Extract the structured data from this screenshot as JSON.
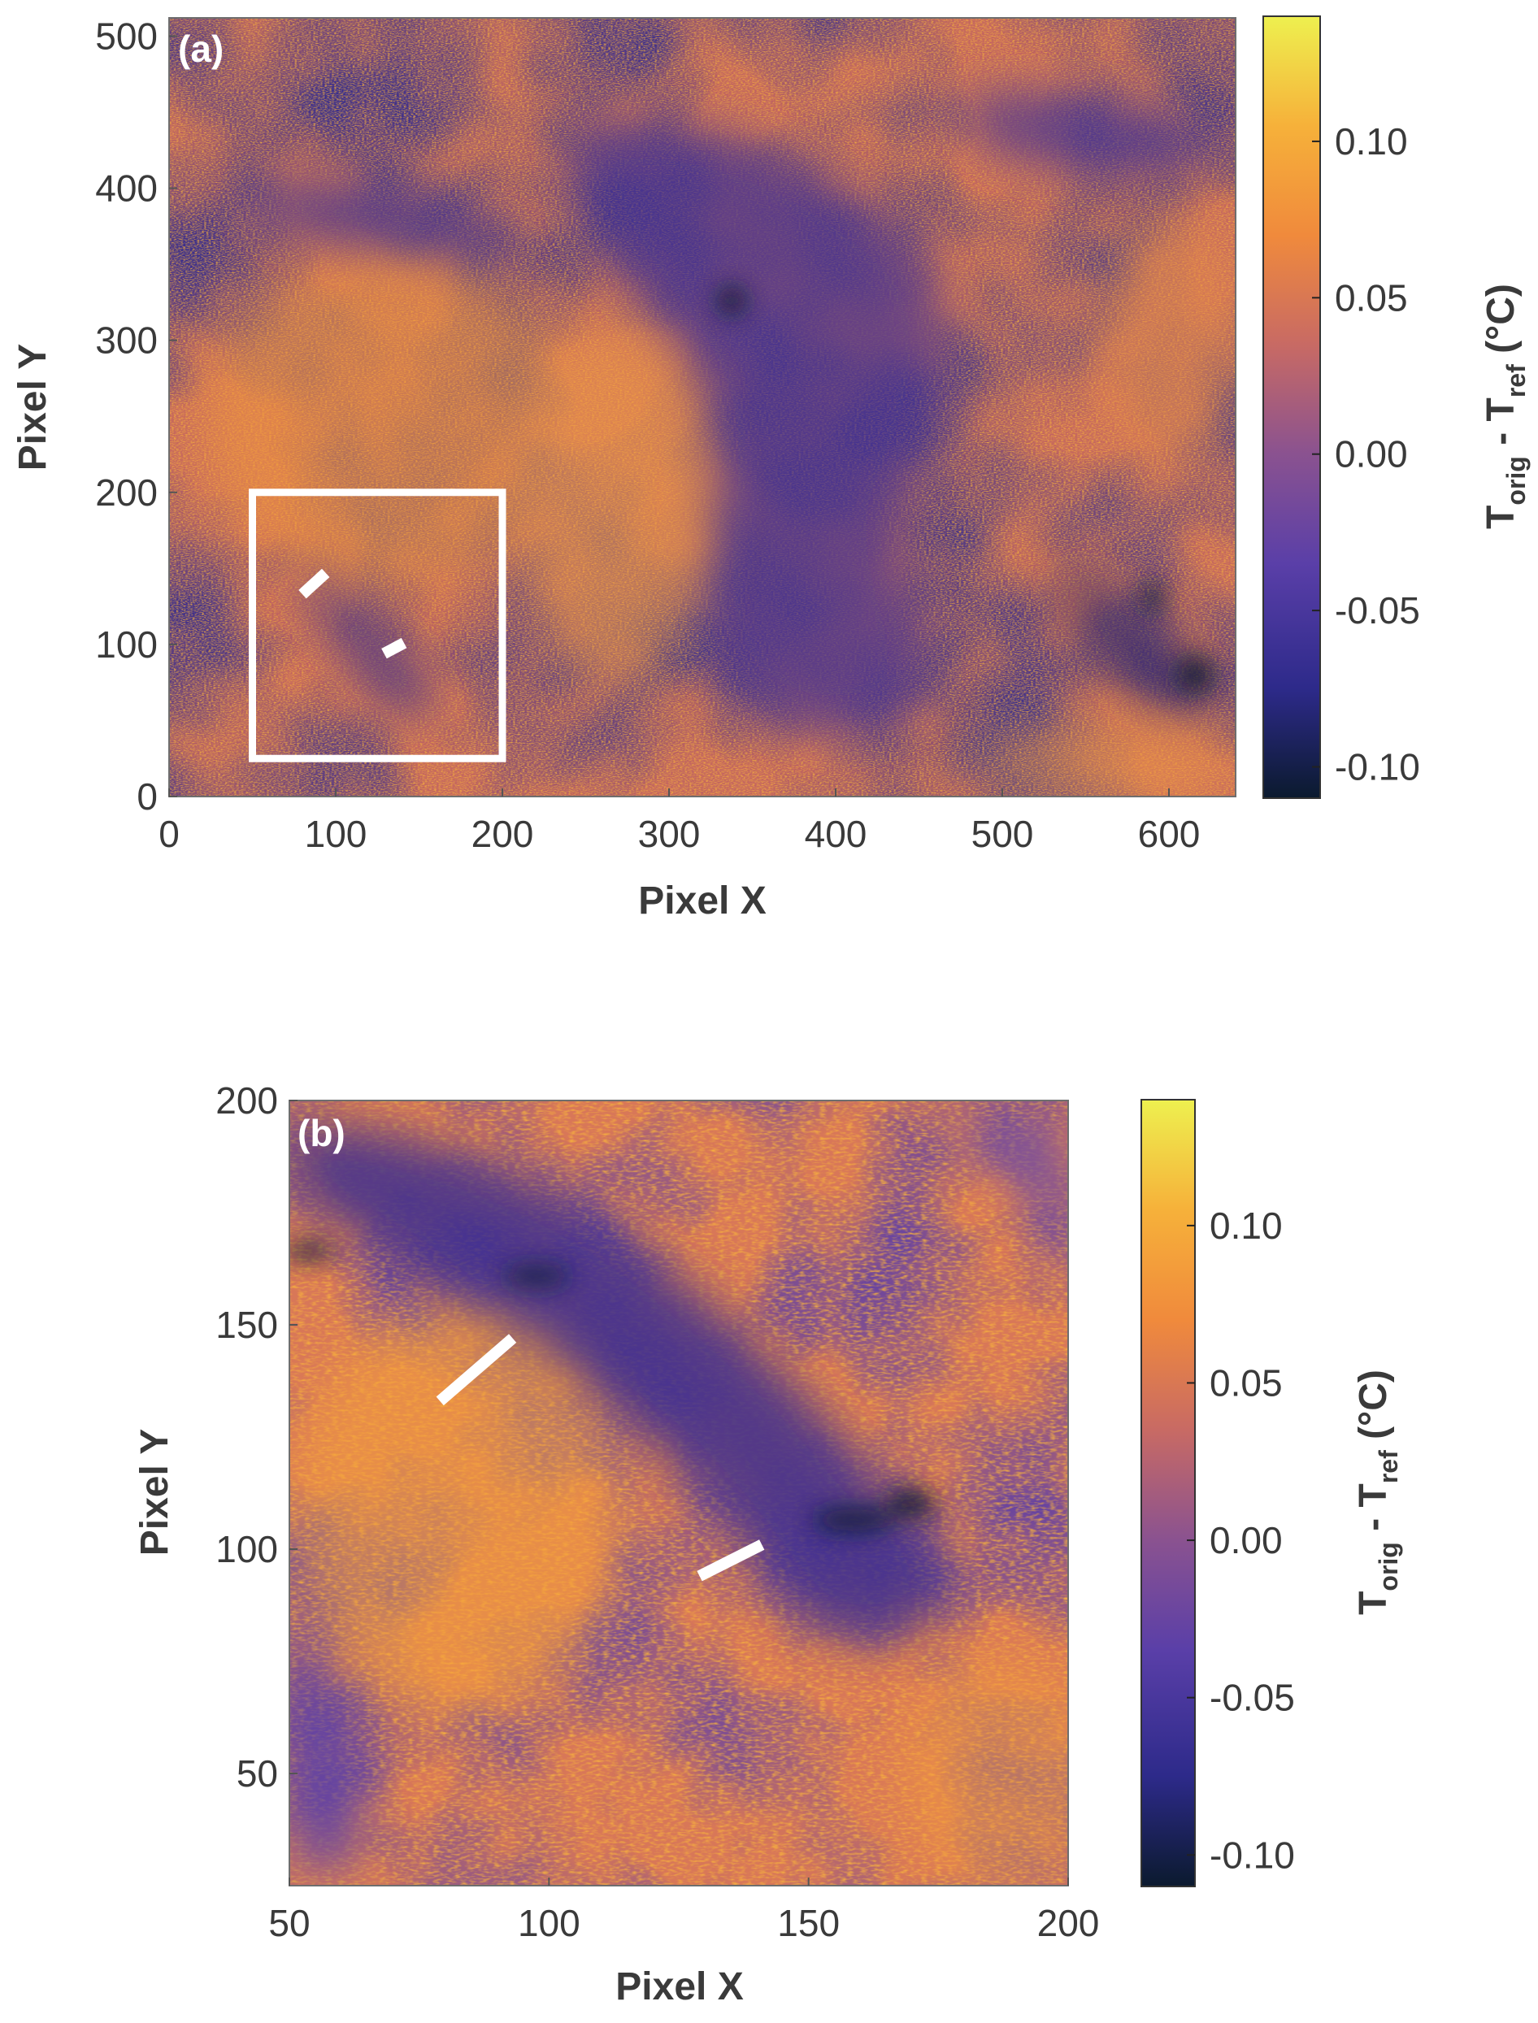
{
  "chart_data": [
    {
      "type": "heatmap",
      "panel_label": "(a)",
      "xlabel": "Pixel X",
      "ylabel": "Pixel Y",
      "xlim": [
        0,
        640
      ],
      "ylim": [
        0,
        512
      ],
      "xticks": [
        "0",
        "100",
        "200",
        "300",
        "400",
        "500",
        "600"
      ],
      "xtick_values": [
        0,
        100,
        200,
        300,
        400,
        500,
        600
      ],
      "yticks": [
        "0",
        "100",
        "200",
        "300",
        "400",
        "500"
      ],
      "ytick_values": [
        0,
        100,
        200,
        300,
        400,
        500
      ],
      "colorbar": {
        "label_main": "T",
        "label_sub1": "orig",
        "label_mid": " - T",
        "label_sub2": "ref",
        "label_unit": " (°C)",
        "range": [
          -0.11,
          0.14
        ],
        "ticks": [
          "-0.10",
          "-0.05",
          "0.00",
          "0.05",
          "0.10"
        ],
        "tick_values": [
          -0.1,
          -0.05,
          0.0,
          0.05,
          0.1
        ],
        "colormap": [
          "#0b1a2e",
          "#2d2a8a",
          "#5a3fa8",
          "#8a5290",
          "#c86a64",
          "#f08a3c",
          "#f6b13a",
          "#eef04f"
        ]
      },
      "annotations": [
        {
          "type": "rectangle",
          "x0": 50,
          "x1": 200,
          "y0": 25,
          "y1": 200,
          "color": "#ffffff"
        },
        {
          "type": "segment",
          "x": [
            80,
            94
          ],
          "y": [
            133,
            147
          ],
          "color": "#ffffff"
        },
        {
          "type": "segment",
          "x": [
            129,
            141
          ],
          "y": [
            94,
            101
          ],
          "color": "#ffffff"
        }
      ]
    },
    {
      "type": "heatmap",
      "panel_label": "(b)",
      "xlabel": "Pixel X",
      "ylabel": "Pixel Y",
      "xlim": [
        50,
        200
      ],
      "ylim": [
        25,
        200
      ],
      "xticks": [
        "50",
        "100",
        "150",
        "200"
      ],
      "xtick_values": [
        50,
        100,
        150,
        200
      ],
      "yticks": [
        "50",
        "100",
        "150",
        "200"
      ],
      "ytick_values": [
        50,
        100,
        150,
        200
      ],
      "colorbar": {
        "label_main": "T",
        "label_sub1": "orig",
        "label_mid": " - T",
        "label_sub2": "ref",
        "label_unit": " (°C)",
        "range": [
          -0.11,
          0.14
        ],
        "ticks": [
          "-0.10",
          "-0.05",
          "0.00",
          "0.05",
          "0.10"
        ],
        "tick_values": [
          -0.1,
          -0.05,
          0.0,
          0.05,
          0.1
        ],
        "colormap": [
          "#0b1a2e",
          "#2d2a8a",
          "#5a3fa8",
          "#8a5290",
          "#c86a64",
          "#f08a3c",
          "#f6b13a",
          "#eef04f"
        ]
      },
      "annotations": [
        {
          "type": "segment",
          "x": [
            79,
            93
          ],
          "y": [
            133,
            147
          ],
          "color": "#ffffff"
        },
        {
          "type": "segment",
          "x": [
            129,
            141
          ],
          "y": [
            94,
            101
          ],
          "color": "#ffffff"
        }
      ]
    }
  ]
}
